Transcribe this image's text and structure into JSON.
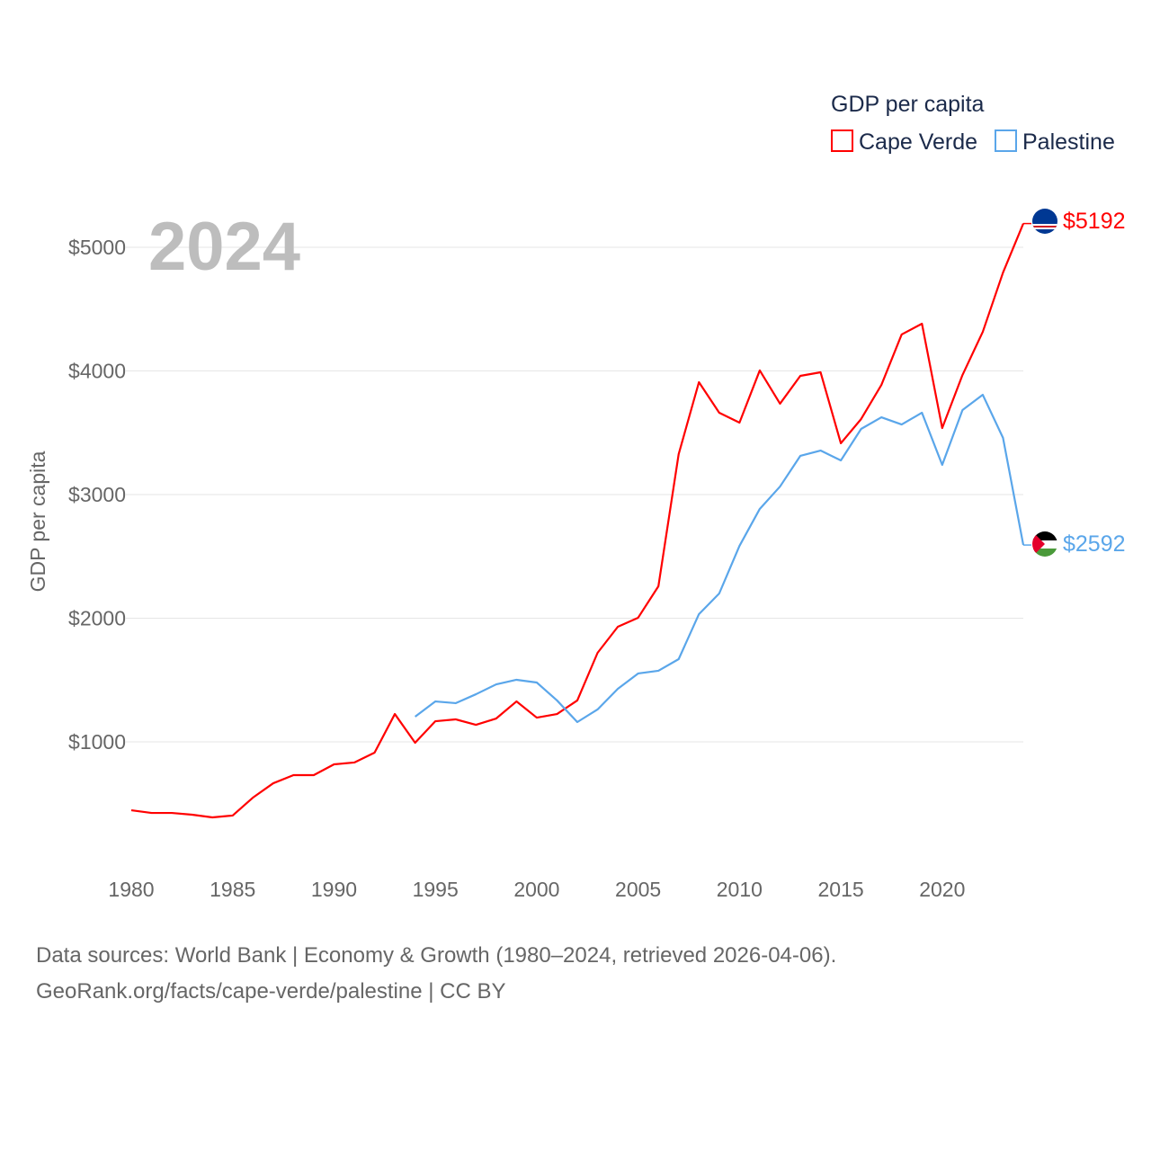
{
  "chart_data": {
    "type": "line",
    "title": "GDP per capita",
    "year_label": "2024",
    "ylabel": "GDP per capita",
    "xlabel": "",
    "xlim": [
      1980,
      2024
    ],
    "ylim": [
      0,
      5500
    ],
    "x_ticks": [
      1980,
      1985,
      1990,
      1995,
      2000,
      2005,
      2010,
      2015,
      2020
    ],
    "x_tick_labels": [
      "1980",
      "1985",
      "1990",
      "1995",
      "2000",
      "2005",
      "2010",
      "2015",
      "2020"
    ],
    "y_ticks": [
      1000,
      2000,
      3000,
      4000,
      5000
    ],
    "y_tick_labels": [
      "$1000",
      "$2000",
      "$3000",
      "$4000",
      "$5000"
    ],
    "grid": true,
    "legend_position": "top-right",
    "series": [
      {
        "name": "Cape Verde",
        "color": "#ff0000",
        "end_label": "$5192",
        "x": [
          1980,
          1981,
          1982,
          1983,
          1984,
          1985,
          1986,
          1987,
          1988,
          1989,
          1990,
          1991,
          1992,
          1993,
          1994,
          1995,
          1996,
          1997,
          1998,
          1999,
          2000,
          2001,
          2002,
          2003,
          2004,
          2005,
          2006,
          2007,
          2008,
          2009,
          2010,
          2011,
          2012,
          2013,
          2014,
          2015,
          2016,
          2017,
          2018,
          2019,
          2020,
          2021,
          2022,
          2023,
          2024
        ],
        "values": [
          447,
          425,
          425,
          411,
          389,
          404,
          549,
          665,
          731,
          731,
          818,
          833,
          913,
          1225,
          993,
          1167,
          1182,
          1138,
          1189,
          1327,
          1196,
          1225,
          1335,
          1720,
          1931,
          2004,
          2258,
          3327,
          3909,
          3662,
          3582,
          4004,
          3735,
          3960,
          3989,
          3415,
          3611,
          3887,
          4295,
          4382,
          3538,
          3967,
          4316,
          4796,
          5192
        ]
      },
      {
        "name": "Palestine",
        "color": "#5aa6ea",
        "end_label": "$2592",
        "x": [
          1994,
          1995,
          1996,
          1997,
          1998,
          1999,
          2000,
          2001,
          2002,
          2003,
          2004,
          2005,
          2006,
          2007,
          2008,
          2009,
          2010,
          2011,
          2012,
          2013,
          2014,
          2015,
          2016,
          2017,
          2018,
          2019,
          2020,
          2021,
          2022,
          2023,
          2024
        ],
        "values": [
          1204,
          1327,
          1313,
          1385,
          1465,
          1502,
          1480,
          1335,
          1160,
          1262,
          1429,
          1553,
          1575,
          1669,
          2033,
          2200,
          2585,
          2884,
          3065,
          3313,
          3356,
          3276,
          3531,
          3625,
          3567,
          3662,
          3240,
          3684,
          3807,
          3458,
          2592
        ]
      }
    ]
  },
  "footer": {
    "line1": "Data sources: World Bank | Economy & Growth (1980–2024, retrieved 2026-04-06).",
    "line2": "GeoRank.org/facts/cape-verde/palestine | CC BY"
  }
}
